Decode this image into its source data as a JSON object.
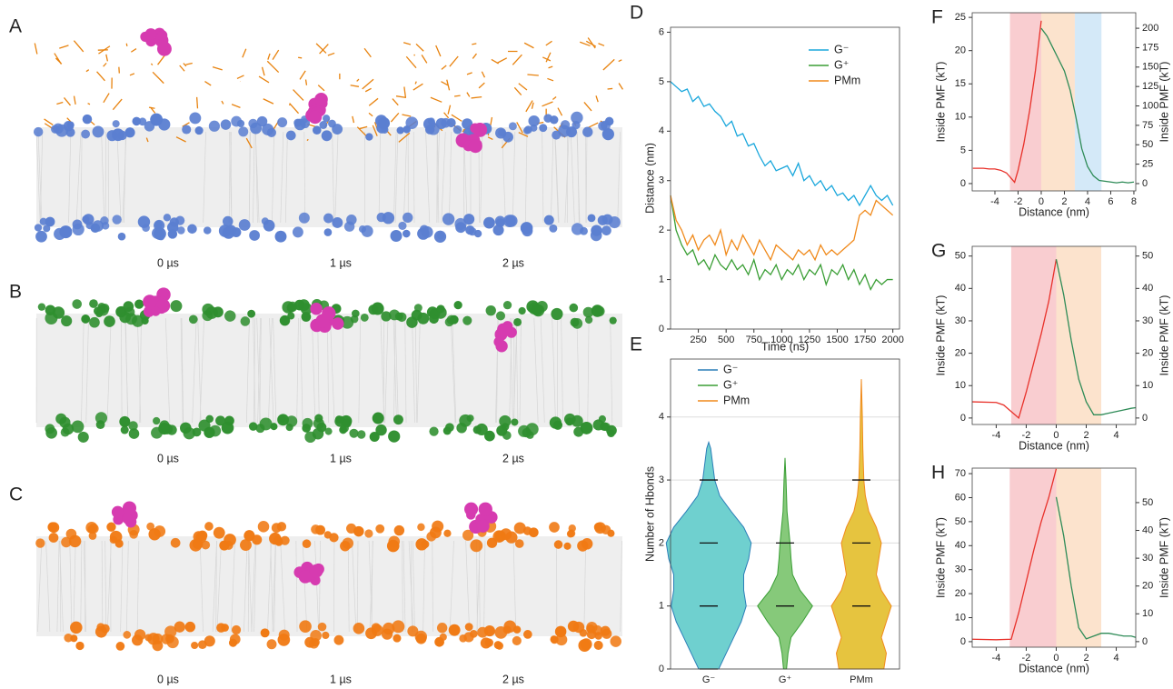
{
  "panels": [
    {
      "letter": "A",
      "times": [
        "0 µs",
        "1 µs",
        "2 µs"
      ]
    },
    {
      "letter": "B",
      "times": [
        "0 µs",
        "1 µs",
        "2 µs"
      ]
    },
    {
      "letter": "C",
      "times": [
        "0 µs",
        "1 µs",
        "2 µs"
      ]
    }
  ],
  "chart_data": [
    {
      "letter": "D",
      "type": "line",
      "xlabel": "Time (ns)",
      "ylabel": "Distance (nm)",
      "legend": "upper right",
      "xlim": [
        0,
        2060
      ],
      "xticks": [
        250,
        500,
        750,
        1000,
        1250,
        1500,
        1750,
        2000
      ],
      "ylim": [
        0,
        6.1
      ],
      "yticks": [
        0,
        1,
        2,
        3,
        4,
        5,
        6
      ],
      "x": [
        0,
        50,
        100,
        150,
        200,
        250,
        300,
        350,
        400,
        450,
        500,
        550,
        600,
        650,
        700,
        750,
        800,
        850,
        900,
        950,
        1000,
        1050,
        1100,
        1150,
        1200,
        1250,
        1300,
        1350,
        1400,
        1450,
        1500,
        1550,
        1600,
        1650,
        1700,
        1750,
        1800,
        1850,
        1900,
        1950,
        2000
      ],
      "series": [
        {
          "name": "G⁻",
          "color": "#1aa7dc",
          "values": [
            5.0,
            4.9,
            4.8,
            4.85,
            4.6,
            4.7,
            4.5,
            4.55,
            4.4,
            4.3,
            4.1,
            4.2,
            3.9,
            3.95,
            3.7,
            3.75,
            3.5,
            3.3,
            3.4,
            3.2,
            3.25,
            3.3,
            3.1,
            3.35,
            3.0,
            3.1,
            2.9,
            3.0,
            2.8,
            2.9,
            2.7,
            2.75,
            2.6,
            2.7,
            2.5,
            2.7,
            2.9,
            2.7,
            2.6,
            2.7,
            2.5
          ]
        },
        {
          "name": "G⁺",
          "color": "#3a9e35",
          "values": [
            2.7,
            2.0,
            1.7,
            1.5,
            1.6,
            1.3,
            1.4,
            1.2,
            1.5,
            1.3,
            1.2,
            1.4,
            1.2,
            1.3,
            1.1,
            1.4,
            1.0,
            1.2,
            1.1,
            1.3,
            1.0,
            1.2,
            1.1,
            1.3,
            1.0,
            1.2,
            1.1,
            1.3,
            0.9,
            1.2,
            1.1,
            1.3,
            1.0,
            1.2,
            0.9,
            1.1,
            0.8,
            1.0,
            0.9,
            1.0,
            1.0
          ]
        },
        {
          "name": "PMm",
          "color": "#f08a1c",
          "values": [
            2.7,
            2.2,
            2.0,
            1.7,
            1.9,
            1.6,
            1.8,
            1.9,
            1.7,
            2.0,
            1.5,
            1.8,
            1.6,
            1.9,
            1.7,
            1.5,
            1.8,
            1.6,
            1.4,
            1.7,
            1.6,
            1.5,
            1.4,
            1.6,
            1.5,
            1.6,
            1.4,
            1.7,
            1.5,
            1.6,
            1.5,
            1.6,
            1.7,
            1.8,
            2.3,
            2.4,
            2.3,
            2.6,
            2.5,
            2.4,
            2.3
          ]
        }
      ]
    },
    {
      "letter": "E",
      "type": "violin",
      "ylabel": "Number of Hbonds",
      "legend": "upper left",
      "grid": true,
      "ylim": [
        0,
        4.92
      ],
      "yticks": [
        0,
        1,
        2,
        3,
        4
      ],
      "categories": [
        "G⁻",
        "G⁺",
        "PMm"
      ],
      "violins": [
        {
          "name": "G⁻",
          "color": "#6fd0cf",
          "line_color": "#2c7fb8",
          "y": [
            0,
            0.25,
            0.5,
            0.75,
            1,
            1.25,
            1.5,
            1.75,
            2,
            2.25,
            2.5,
            2.75,
            3,
            3.25,
            3.5,
            3.6
          ],
          "density": [
            0.2,
            0.35,
            0.5,
            0.65,
            0.75,
            0.7,
            0.7,
            0.8,
            0.85,
            0.7,
            0.45,
            0.22,
            0.12,
            0.08,
            0.04,
            0
          ],
          "marks": [
            0,
            1,
            2,
            3
          ]
        },
        {
          "name": "G⁺",
          "color": "#86c97a",
          "line_color": "#3a9e35",
          "y": [
            0,
            0.25,
            0.5,
            0.75,
            1,
            1.25,
            1.5,
            1.75,
            2,
            2.25,
            2.5,
            2.75,
            3,
            3.35
          ],
          "density": [
            0.03,
            0.06,
            0.12,
            0.35,
            0.55,
            0.3,
            0.15,
            0.12,
            0.1,
            0.07,
            0.04,
            0.03,
            0.02,
            0
          ],
          "marks": [
            1,
            2
          ]
        },
        {
          "name": "PMm",
          "color": "#e6c43f",
          "line_color": "#f08a1c",
          "y": [
            0,
            0.25,
            0.5,
            0.75,
            1,
            1.25,
            1.5,
            1.75,
            2,
            2.25,
            2.5,
            2.75,
            3,
            3.5,
            4,
            4.6
          ],
          "density": [
            0.45,
            0.5,
            0.4,
            0.5,
            0.6,
            0.4,
            0.3,
            0.35,
            0.4,
            0.3,
            0.15,
            0.08,
            0.05,
            0.03,
            0.02,
            0
          ],
          "marks": [
            1,
            2,
            3
          ]
        }
      ]
    },
    {
      "letter": "F",
      "type": "line",
      "xlabel": "Distance (nm)",
      "ylabel": "Inside PMF (kT)",
      "y2label": "Inside PMF (kT)",
      "ylabel_color": "#e8312a",
      "y2label_color": "#5b86c0",
      "xlim": [
        -5.96,
        8.16
      ],
      "xticks": [
        -4,
        -2,
        0,
        2,
        4,
        6,
        8
      ],
      "ylim": [
        -1.1,
        25.7
      ],
      "yticks": [
        0,
        5,
        10,
        15,
        20,
        25
      ],
      "y2lim": [
        -9.4,
        220
      ],
      "y2ticks": [
        0,
        25,
        50,
        75,
        100,
        125,
        150,
        175,
        200
      ],
      "regions": [
        {
          "x0": -2.7,
          "x1": 0,
          "color": "#f8c0c4"
        },
        {
          "x0": 0,
          "x1": 2.9,
          "color": "#fbdcc0"
        },
        {
          "x0": 2.9,
          "x1": 5.2,
          "color": "#c9e3f6"
        }
      ],
      "series": [
        {
          "color": "#e8312a",
          "x": [
            -5.9,
            -5,
            -4.5,
            -4,
            -3.5,
            -3,
            -2.5,
            -2.3,
            -2,
            -1.5,
            -1,
            -0.5,
            0
          ],
          "values": [
            2.3,
            2.3,
            2.2,
            2.2,
            2.0,
            1.6,
            0.6,
            0.2,
            2,
            6,
            11,
            17,
            24.5
          ]
        },
        {
          "color": "#2e8b57",
          "axis": "y2",
          "x": [
            0,
            0.5,
            1,
            1.5,
            2,
            2.5,
            3,
            3.5,
            4,
            4.5,
            5,
            5.5,
            6,
            6.5,
            7,
            7.5,
            8
          ],
          "values": [
            200,
            190,
            175,
            160,
            145,
            120,
            85,
            45,
            22,
            10,
            4,
            3,
            2,
            1,
            2,
            1,
            2
          ]
        }
      ]
    },
    {
      "letter": "G",
      "type": "line",
      "xlabel": "Distance (nm)",
      "ylabel": "Inside PMF (kT)",
      "y2label": "Inside PMF (kT)",
      "ylabel_color": "#e8312a",
      "y2label_color": "#5b86c0",
      "xlim": [
        -5.6,
        5.3
      ],
      "xticks": [
        -4,
        -2,
        0,
        2,
        4
      ],
      "ylim": [
        -2,
        53
      ],
      "yticks": [
        0,
        10,
        20,
        30,
        40,
        50
      ],
      "y2lim": [
        -2,
        53
      ],
      "y2ticks": [
        0,
        10,
        20,
        30,
        40,
        50
      ],
      "regions": [
        {
          "x0": -3,
          "x1": 0,
          "color": "#f8c0c4"
        },
        {
          "x0": 0,
          "x1": 3,
          "color": "#fbdcc0"
        }
      ],
      "series": [
        {
          "color": "#e8312a",
          "x": [
            -5.6,
            -4,
            -3.5,
            -3,
            -2.5,
            -2,
            -1.5,
            -1,
            -0.5,
            0
          ],
          "values": [
            5,
            4.8,
            4,
            2,
            0,
            8,
            17,
            26,
            36,
            49
          ]
        },
        {
          "color": "#2e8b57",
          "axis": "y2",
          "x": [
            0,
            0.5,
            1,
            1.5,
            2,
            2.5,
            3,
            3.5,
            4,
            4.5,
            5,
            5.3
          ],
          "values": [
            49,
            38,
            24,
            12,
            5,
            1,
            1,
            1.5,
            2,
            2.5,
            3,
            3.2
          ]
        }
      ]
    },
    {
      "letter": "H",
      "type": "line",
      "xlabel": "Distance (nm)",
      "ylabel": "Inside PMF (kT)",
      "y2label": "Inside PMF (kT)",
      "ylabel_color": "#e8312a",
      "y2label_color": "#5b86c0",
      "xlim": [
        -5.6,
        5.3
      ],
      "xticks": [
        -4,
        -2,
        0,
        2,
        4
      ],
      "ylim": [
        -2.3,
        72.3
      ],
      "yticks": [
        0,
        10,
        20,
        30,
        40,
        50,
        60,
        70
      ],
      "y2lim": [
        -2,
        62.4
      ],
      "y2ticks": [
        0,
        10,
        20,
        30,
        40,
        50
      ],
      "regions": [
        {
          "x0": -3.1,
          "x1": 0,
          "color": "#f8c0c4"
        },
        {
          "x0": 0,
          "x1": 3,
          "color": "#fbdcc0"
        }
      ],
      "series": [
        {
          "color": "#e8312a",
          "x": [
            -5.6,
            -4,
            -3,
            -2.5,
            -2,
            -1.5,
            -1,
            -0.5,
            0
          ],
          "values": [
            1,
            0.8,
            1,
            12,
            25,
            38,
            50,
            60,
            72
          ]
        },
        {
          "color": "#2e8b57",
          "axis": "y2",
          "x": [
            0,
            0.5,
            1,
            1.5,
            2,
            2.5,
            3,
            3.5,
            4,
            4.5,
            5,
            5.3
          ],
          "values": [
            52,
            38,
            20,
            5,
            1,
            2,
            3,
            3,
            2.5,
            2,
            2,
            1.5
          ]
        }
      ]
    }
  ]
}
